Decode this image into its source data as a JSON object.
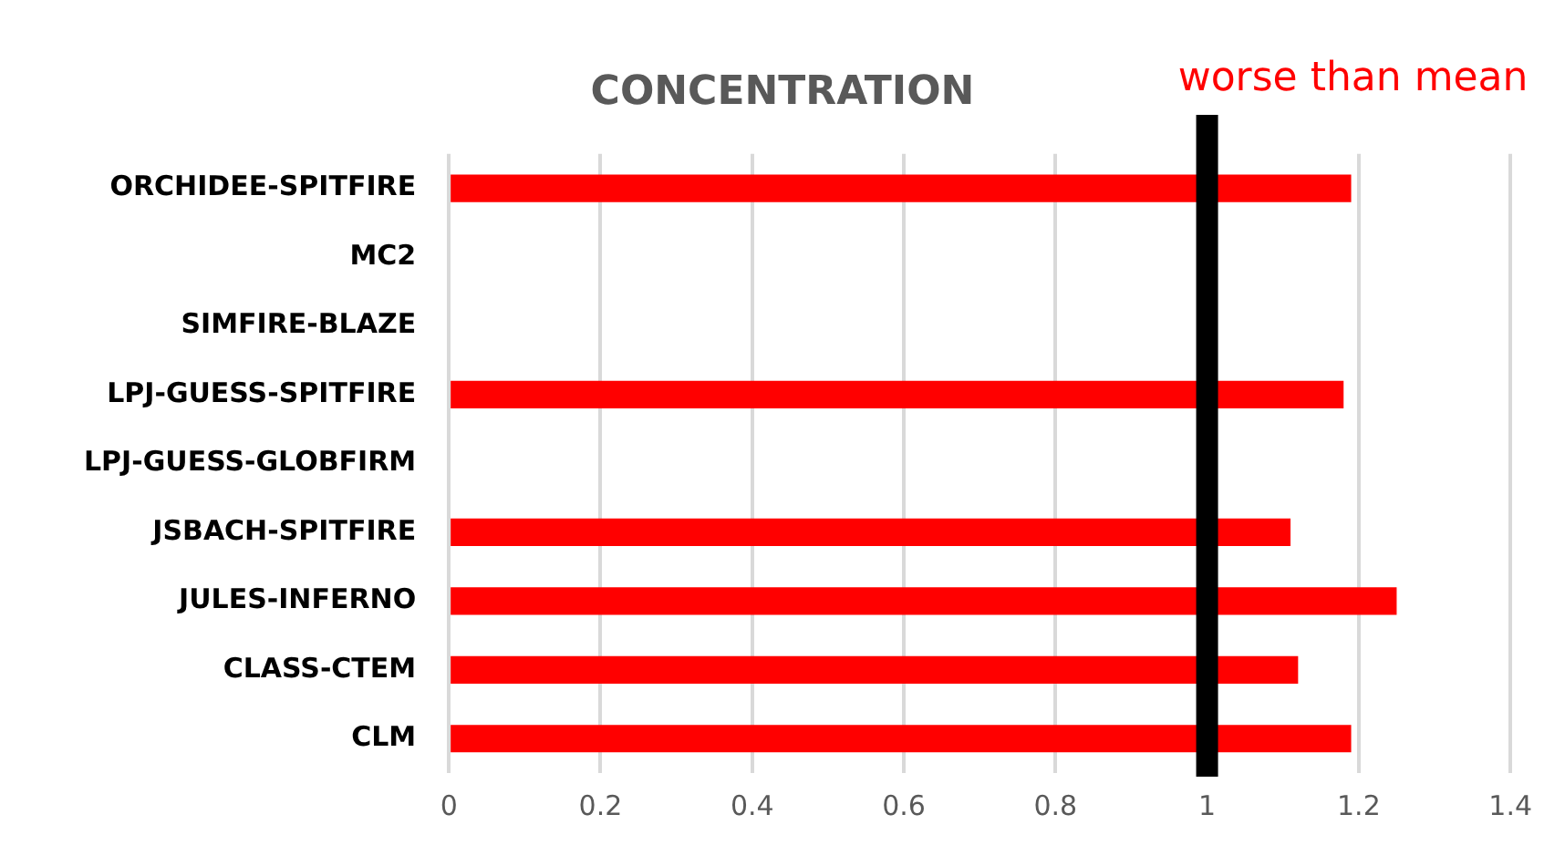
{
  "chart_data": {
    "type": "bar",
    "orientation": "horizontal",
    "title": "CONCENTRATION",
    "categories": [
      "ORCHIDEE-SPITFIRE",
      "MC2",
      "SIMFIRE-BLAZE",
      "LPJ-GUESS-SPITFIRE",
      "LPJ-GUESS-GLOBFIRM",
      "JSBACH-SPITFIRE",
      "JULES-INFERNO",
      "CLASS-CTEM",
      "CLM"
    ],
    "values": [
      1.19,
      null,
      null,
      1.18,
      null,
      1.11,
      1.25,
      1.12,
      1.19
    ],
    "color": "#ff0000",
    "xlim": [
      0,
      1.4
    ],
    "xticks": [
      0,
      0.2,
      0.4,
      0.6,
      0.8,
      1,
      1.2,
      1.4
    ],
    "grid": "x",
    "ref_lines": [
      {
        "axis": "x",
        "value": 1,
        "label": "worse than mean",
        "color": "#000000"
      }
    ]
  }
}
